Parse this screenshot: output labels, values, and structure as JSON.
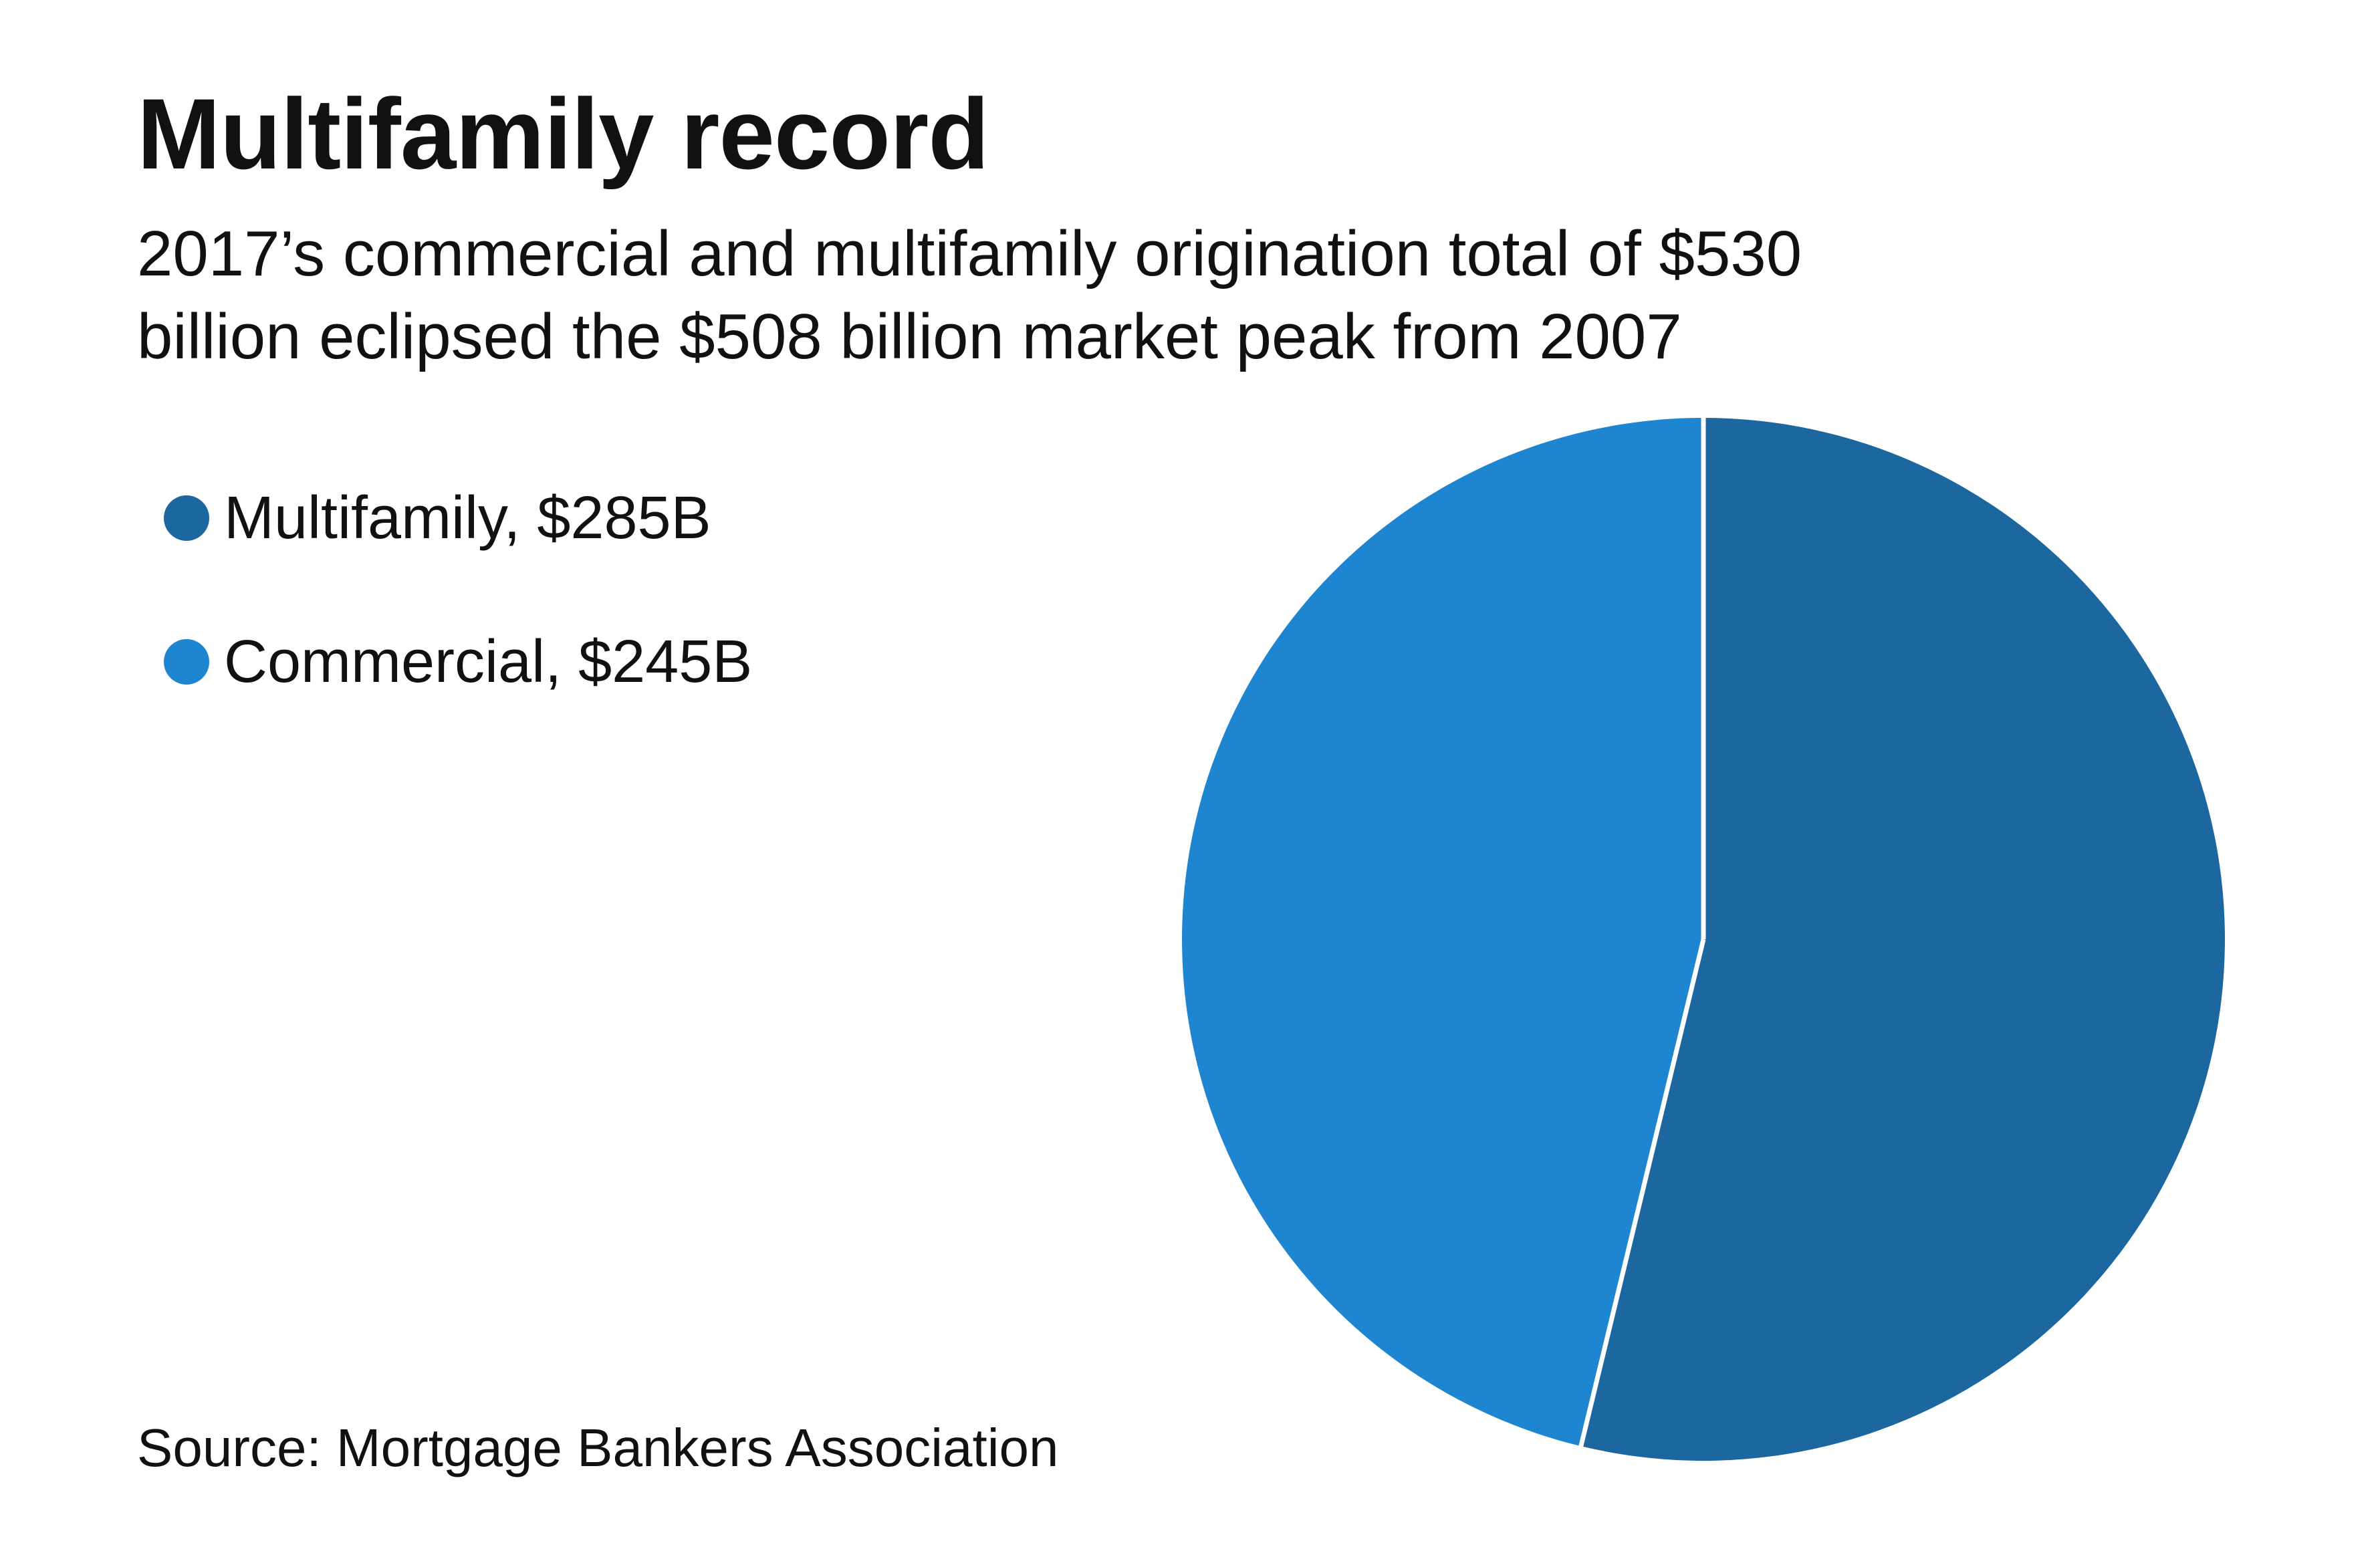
{
  "title": "Multifamily record",
  "subtitle": "2017’s commercial and multifamily origination total of $530\nbillion eclipsed the $508 billion market peak from 2007",
  "source": "Source: Mortgage Bankers Association",
  "colors": {
    "multifamily": "#1c679f",
    "commercial": "#1e86d1",
    "divider": "#ffffff"
  },
  "chart_data": {
    "type": "pie",
    "title": "Multifamily record",
    "slices": [
      {
        "name": "Multifamily",
        "value": 285,
        "label": "Multifamily, $285B",
        "color": "#1c679f"
      },
      {
        "name": "Commercial",
        "value": 245,
        "label": "Commercial, $245B",
        "color": "#1e86d1"
      }
    ],
    "total": 530,
    "legend_position": "left"
  }
}
